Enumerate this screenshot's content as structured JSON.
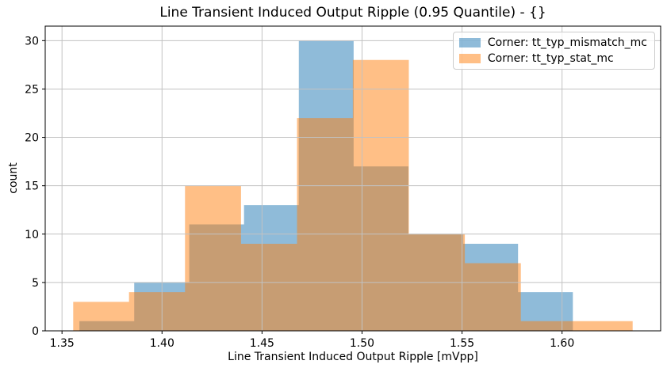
{
  "chart_data": {
    "type": "histogram",
    "title": "Line Transient Induced Output Ripple (0.95 Quantile) - {}",
    "xlabel": "Line Transient Induced Output Ripple [mVpp]",
    "ylabel": "count",
    "xlim": [
      1.3416,
      1.6493
    ],
    "ylim": [
      0,
      31.5
    ],
    "x_tick_values": [
      1.35,
      1.4,
      1.45,
      1.5,
      1.55,
      1.6
    ],
    "x_tick_labels": [
      "1.35",
      "1.40",
      "1.45",
      "1.50",
      "1.55",
      "1.60"
    ],
    "y_tick_values": [
      0,
      5,
      10,
      15,
      20,
      25,
      30
    ],
    "y_tick_labels": [
      "0",
      "5",
      "10",
      "15",
      "20",
      "25",
      "30"
    ],
    "grid": true,
    "grid_color": "#c2c2c2",
    "spine_color": "#000000",
    "legend_position": "upper right",
    "series": [
      {
        "name": "Corner: tt_typ_mismatch_mc",
        "base_color": "#1f77b4",
        "alpha": 0.5,
        "fill_rgba": "rgba(31,119,180,0.5)",
        "bin_edges": [
          1.3587,
          1.3861,
          1.4136,
          1.441,
          1.4684,
          1.4958,
          1.5232,
          1.5506,
          1.578,
          1.6054
        ],
        "counts": [
          1,
          5,
          11,
          13,
          30,
          17,
          10,
          9,
          4
        ]
      },
      {
        "name": "Corner: tt_typ_stat_mc",
        "base_color": "#ff7f0e",
        "alpha": 0.5,
        "fill_rgba": "rgba(255,127,14,0.5)",
        "bin_edges": [
          1.3556,
          1.3835,
          1.4115,
          1.4395,
          1.4675,
          1.4954,
          1.5234,
          1.5514,
          1.5794,
          1.6073,
          1.6353
        ],
        "counts": [
          3,
          4,
          15,
          9,
          22,
          28,
          10,
          7,
          1,
          1
        ]
      }
    ]
  }
}
